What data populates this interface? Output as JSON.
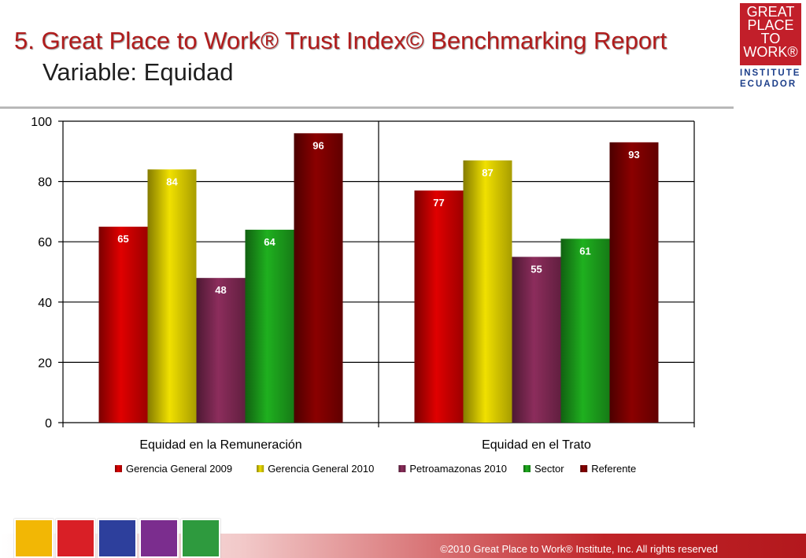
{
  "header": {
    "title": "5. Great Place to Work® Trust Index© Benchmarking Report",
    "subtitle": "Variable: Equidad"
  },
  "logo": {
    "lines": [
      "GREAT",
      "PLACE",
      "TO",
      "WORK®"
    ],
    "institute": "INSTITUTE",
    "country": "ECUADOR"
  },
  "footer": {
    "copyright": "©2010 Great Place to Work® Institute, Inc. All rights reserved",
    "icon_colors": [
      "#f2b705",
      "#d91f26",
      "#2d3f9c",
      "#7b2d8e",
      "#2e9a3e"
    ]
  },
  "chart_data": {
    "type": "bar",
    "categories": [
      "Equidad en la Remuneración",
      "Equidad en el Trato"
    ],
    "series": [
      {
        "name": "Gerencia General 2009",
        "values": [
          65,
          77
        ],
        "color": "#e00000"
      },
      {
        "name": "Gerencia General 2010",
        "values": [
          84,
          87
        ],
        "color": "#f0e000"
      },
      {
        "name": "Petroamazonas 2010",
        "values": [
          48,
          55
        ],
        "color": "#8c2d5c"
      },
      {
        "name": "Sector",
        "values": [
          64,
          61
        ],
        "color": "#1fb01f"
      },
      {
        "name": "Referente",
        "values": [
          96,
          93
        ],
        "color": "#8b0000"
      }
    ],
    "ylim": [
      0,
      100
    ],
    "yticks": [
      0,
      20,
      40,
      60,
      80,
      100
    ],
    "grid": true,
    "legend": "bottom",
    "data_labels": true
  }
}
